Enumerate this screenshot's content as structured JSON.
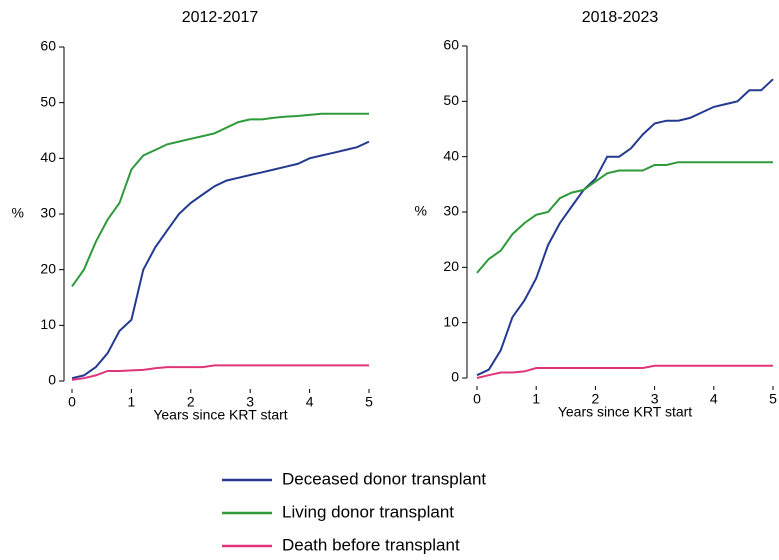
{
  "chart_data": [
    {
      "type": "line",
      "title": "2012-2017",
      "x_label": "Years since KRT start",
      "y_label": "%",
      "x": [
        0,
        0.2,
        0.4,
        0.6,
        0.8,
        1.0,
        1.2,
        1.4,
        1.6,
        1.8,
        2.0,
        2.2,
        2.4,
        2.6,
        2.8,
        3.0,
        3.2,
        3.4,
        3.6,
        3.8,
        4.0,
        4.2,
        4.4,
        4.6,
        4.8,
        5.0
      ],
      "series": [
        {
          "name": "Deceased donor transplant",
          "color": "#233a8f",
          "values": [
            0.5,
            1,
            2.5,
            5,
            9,
            11,
            20,
            24,
            27,
            30,
            32,
            33.5,
            35,
            36,
            36.5,
            37,
            37.5,
            38,
            38.5,
            39,
            40,
            40.5,
            41,
            41.5,
            42,
            43
          ]
        },
        {
          "name": "Living donor transplant",
          "color": "#2e9a3a",
          "values": [
            17,
            20,
            25,
            29,
            32,
            38,
            40.5,
            41.5,
            42.5,
            43,
            43.5,
            44,
            44.5,
            45.5,
            46.5,
            47,
            47,
            47.3,
            47.5,
            47.6,
            47.8,
            48,
            48,
            48,
            48,
            48
          ]
        },
        {
          "name": "Death before transplant",
          "color": "#e0357a",
          "values": [
            0.2,
            0.5,
            1,
            1.8,
            1.8,
            1.9,
            2,
            2.3,
            2.5,
            2.5,
            2.5,
            2.5,
            2.8,
            2.8,
            2.8,
            2.8,
            2.8,
            2.8,
            2.8,
            2.8,
            2.8,
            2.8,
            2.8,
            2.8,
            2.8,
            2.8
          ]
        }
      ],
      "xlim": [
        0,
        5
      ],
      "xticks": [
        0,
        1,
        2,
        3,
        4,
        5
      ],
      "ylim": [
        0,
        60
      ],
      "yticks": [
        0,
        10,
        20,
        30,
        40,
        50,
        60
      ]
    },
    {
      "type": "line",
      "title": "2018-2023",
      "x_label": "Years since KRT start",
      "y_label": "%",
      "x": [
        0,
        0.2,
        0.4,
        0.6,
        0.8,
        1.0,
        1.2,
        1.4,
        1.6,
        1.8,
        2.0,
        2.2,
        2.4,
        2.6,
        2.8,
        3.0,
        3.2,
        3.4,
        3.6,
        3.8,
        4.0,
        4.2,
        4.4,
        4.6,
        4.8,
        5.0
      ],
      "series": [
        {
          "name": "Deceased donor transplant",
          "color": "#233a8f",
          "values": [
            0.5,
            1.5,
            5,
            11,
            14,
            18,
            24,
            28,
            31,
            34,
            36,
            40,
            40,
            41.5,
            44,
            46,
            46.5,
            46.5,
            47,
            48,
            49,
            49.5,
            50,
            52,
            52,
            54
          ]
        },
        {
          "name": "Living donor transplant",
          "color": "#2e9a3a",
          "values": [
            19,
            21.5,
            23,
            26,
            28,
            29.5,
            30,
            32.5,
            33.5,
            34,
            35.5,
            37,
            37.5,
            37.5,
            37.5,
            38.5,
            38.5,
            39,
            39,
            39,
            39,
            39,
            39,
            39,
            39,
            39
          ]
        },
        {
          "name": "Death before transplant",
          "color": "#e0357a",
          "values": [
            0,
            0.5,
            1,
            1,
            1.2,
            1.8,
            1.8,
            1.8,
            1.8,
            1.8,
            1.8,
            1.8,
            1.8,
            1.8,
            1.8,
            2.2,
            2.2,
            2.2,
            2.2,
            2.2,
            2.2,
            2.2,
            2.2,
            2.2,
            2.2,
            2.2
          ]
        }
      ],
      "xlim": [
        0,
        5
      ],
      "xticks": [
        0,
        1,
        2,
        3,
        4,
        5
      ],
      "ylim": [
        0,
        60
      ],
      "yticks": [
        0,
        10,
        20,
        30,
        40,
        50,
        60
      ]
    }
  ]
}
